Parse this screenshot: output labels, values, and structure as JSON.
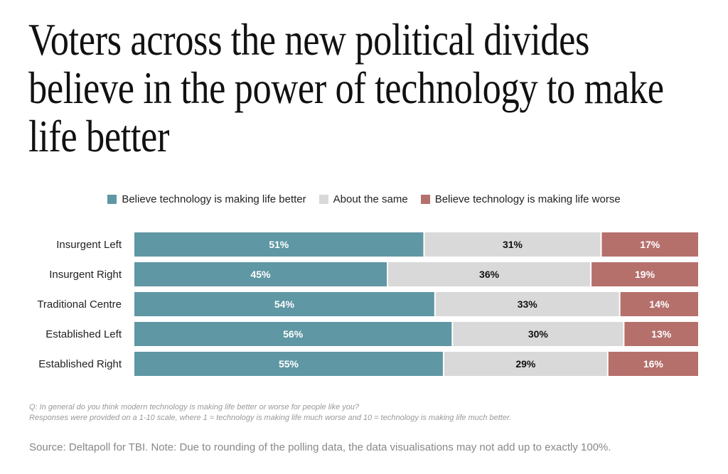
{
  "title": "Voters across the new political divides believe in the power of technology to make life better",
  "notes": {
    "question": "Q: In general do you think modern technology is making life better or worse for people like you?",
    "scale": "Responses were provided on a 1-10 scale, where 1 = technology is making life much worse and 10 = technology is making life much better.",
    "source": "Source: Deltapoll for TBI. Note: Due to rounding of the polling data, the data visualisations may not add up to exactly 100%."
  },
  "chart_data": {
    "type": "bar",
    "orientation": "horizontal",
    "stacked": true,
    "legend_position": "top",
    "grid": false,
    "categories": [
      "Insurgent Left",
      "Insurgent Right",
      "Traditional Centre",
      "Established Left",
      "Established Right"
    ],
    "series": [
      {
        "name": "Believe technology is making life better",
        "color": "#5f97a4",
        "label_color": "#ffffff",
        "values": [
          51,
          45,
          54,
          56,
          55
        ]
      },
      {
        "name": "About the same",
        "color": "#d9d9d9",
        "label_color": "#111111",
        "values": [
          31,
          36,
          33,
          30,
          29
        ]
      },
      {
        "name": "Believe technology is making life worse",
        "color": "#b5706c",
        "label_color": "#ffffff",
        "values": [
          17,
          19,
          14,
          13,
          16
        ]
      }
    ],
    "value_suffix": "%"
  }
}
